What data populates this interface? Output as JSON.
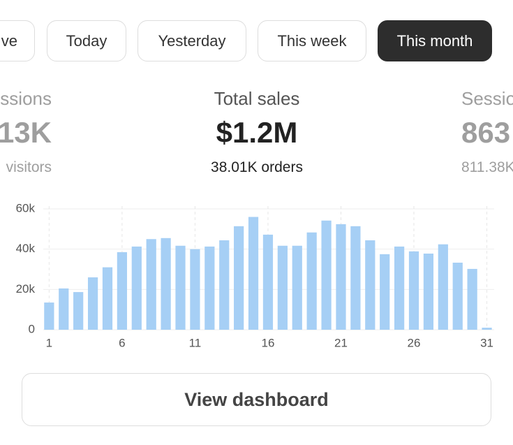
{
  "tabs": [
    "ve",
    "Today",
    "Yesterday",
    "This week",
    "This month"
  ],
  "active_tab": 4,
  "stats": [
    {
      "label": "ssions",
      "value": "13K",
      "sub": "visitors"
    },
    {
      "label": "Total sales",
      "value": "$1.2M",
      "sub": "38.01K orders"
    },
    {
      "label": "Sessio",
      "value": "863",
      "sub": "811.38K"
    }
  ],
  "chart_data": {
    "type": "bar",
    "color": "#a6cff5",
    "x": [
      1,
      2,
      3,
      4,
      5,
      6,
      7,
      8,
      9,
      10,
      11,
      12,
      13,
      14,
      15,
      16,
      17,
      18,
      19,
      20,
      21,
      22,
      23,
      24,
      25,
      26,
      27,
      28,
      29,
      30,
      31
    ],
    "values": [
      13500,
      20500,
      18700,
      26000,
      31000,
      38500,
      41300,
      45000,
      45500,
      41700,
      40000,
      41300,
      44400,
      51400,
      56000,
      47200,
      41700,
      41700,
      48300,
      54200,
      52400,
      51400,
      44400,
      37500,
      41300,
      38900,
      37800,
      42400,
      33300,
      30200,
      1000
    ],
    "xlim": [
      0.6,
      31.5
    ],
    "ylim": [
      0,
      60000
    ],
    "xticks": [
      1,
      6,
      11,
      16,
      21,
      26,
      31
    ],
    "yticks": [
      0,
      {
        "value": 20000,
        "label": "20k"
      },
      {
        "value": 40000,
        "label": "40k"
      },
      {
        "value": 60000,
        "label": "60k"
      }
    ],
    "grid": true
  },
  "button": "View dashboard"
}
